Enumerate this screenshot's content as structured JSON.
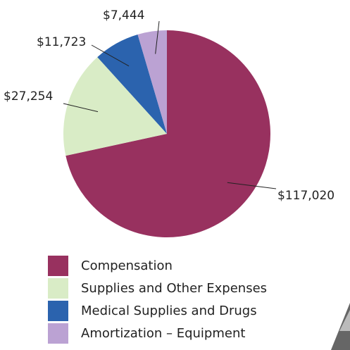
{
  "chart_data": {
    "type": "pie",
    "categories": [
      "Compensation",
      "Supplies and Other Expenses",
      "Medical Supplies and Drugs",
      "Amortization – Equipment"
    ],
    "values": [
      117020,
      27254,
      11723,
      7444
    ],
    "value_labels": [
      "$117,020",
      "$27,254",
      "$11,723",
      "$7,444"
    ],
    "colors": [
      "#98315f",
      "#d9ecc6",
      "#2b63ae",
      "#bba2d3"
    ],
    "legend": "bottom-left"
  }
}
